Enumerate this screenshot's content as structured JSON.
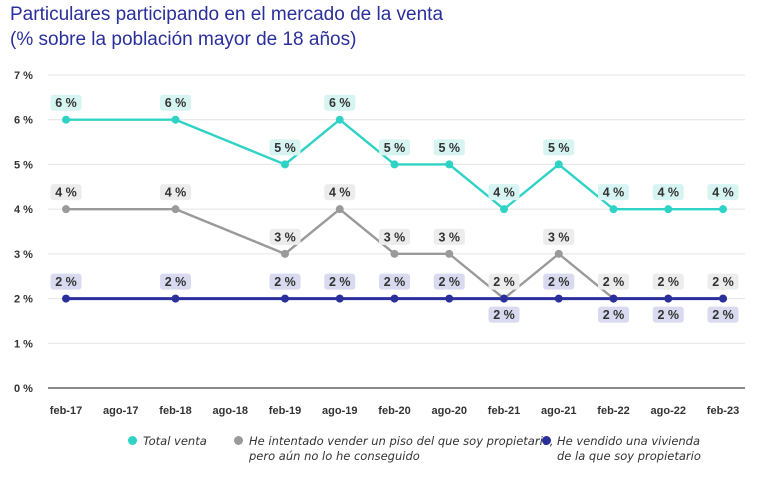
{
  "title_line1": "Particulares participando en el mercado de la venta",
  "title_line2": "(% sobre la población mayor de 18 años)",
  "chart_data": {
    "type": "line",
    "title": "Particulares participando en el mercado de la venta (% sobre la población mayor de 18 años)",
    "xlabel": "",
    "ylabel": "",
    "ylim": [
      0,
      7
    ],
    "y_ticks": [
      0,
      1,
      2,
      3,
      4,
      5,
      6,
      7
    ],
    "y_tick_labels": [
      "0 %",
      "1 %",
      "2 %",
      "3 %",
      "4 %",
      "5 %",
      "6 %",
      "7 %"
    ],
    "categories": [
      "feb-17",
      "ago-17",
      "feb-18",
      "ago-18",
      "feb-19",
      "ago-19",
      "feb-20",
      "ago-20",
      "feb-21",
      "ago-21",
      "feb-22",
      "ago-22",
      "feb-23"
    ],
    "grid": true,
    "legend_position": "bottom",
    "series": [
      {
        "name": "Total venta",
        "color": "#2fd3c5",
        "label_bg": "#d6f4f1",
        "label_position": "above",
        "x": [
          "feb-17",
          "feb-18",
          "feb-19",
          "ago-19",
          "feb-20",
          "ago-20",
          "feb-21",
          "ago-21",
          "feb-22",
          "ago-22",
          "feb-23"
        ],
        "values": [
          6,
          6,
          5,
          6,
          5,
          5,
          4,
          5,
          4,
          4,
          4
        ],
        "labels": [
          "6 %",
          "6 %",
          "5 %",
          "6 %",
          "5 %",
          "5 %",
          "4 %",
          "5 %",
          "4 %",
          "4 %",
          "4 %"
        ]
      },
      {
        "name": "He intentado vender un piso del que soy propietario, pero aún no lo he conseguido",
        "legend_lines": [
          "He intentado vender un piso del que soy propietario,",
          "pero aún no lo he conseguido"
        ],
        "color": "#9a9a9a",
        "label_bg": "#ececec",
        "label_position": "above",
        "x": [
          "feb-17",
          "feb-18",
          "feb-19",
          "ago-19",
          "feb-20",
          "ago-20",
          "feb-21",
          "ago-21",
          "feb-22",
          "ago-22",
          "feb-23"
        ],
        "values": [
          4,
          4,
          3,
          4,
          3,
          3,
          2,
          3,
          2,
          2,
          2
        ],
        "labels": [
          "4 %",
          "4 %",
          "3 %",
          "4 %",
          "3 %",
          "3 %",
          "2 %",
          "3 %",
          "2 %",
          "2 %",
          "2 %"
        ]
      },
      {
        "name": "He vendido una vivienda de la que soy propietario",
        "legend_lines": [
          "He vendido una vivienda",
          "de la que soy propietario"
        ],
        "color": "#2a2f9b",
        "label_bg": "#d9daf0",
        "label_position": "mixed",
        "x": [
          "feb-17",
          "feb-18",
          "feb-19",
          "ago-19",
          "feb-20",
          "ago-20",
          "feb-21",
          "ago-21",
          "feb-22",
          "ago-22",
          "feb-23"
        ],
        "values": [
          2,
          2,
          2,
          2,
          2,
          2,
          2,
          2,
          2,
          2,
          2
        ],
        "labels": [
          "2 %",
          "2 %",
          "2 %",
          "2 %",
          "2 %",
          "2 %",
          "2 %",
          "2 %",
          "2 %",
          "2 %",
          "2 %"
        ],
        "label_sides": [
          "above",
          "above",
          "above",
          "above",
          "above",
          "above",
          "below",
          "above",
          "below",
          "below",
          "below"
        ]
      }
    ]
  }
}
